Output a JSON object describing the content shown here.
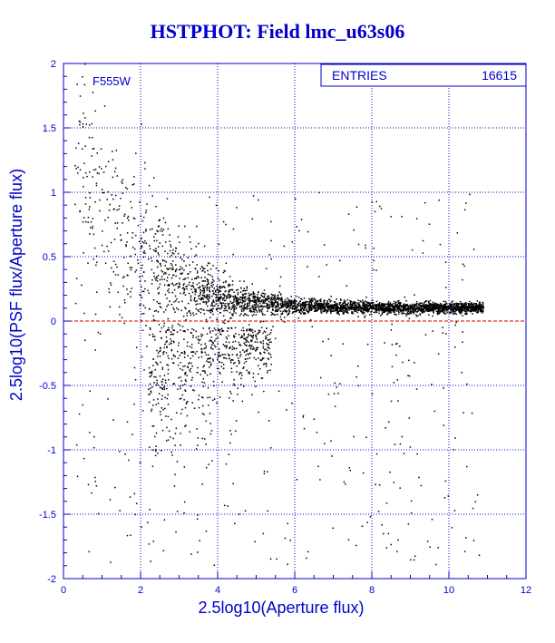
{
  "chart_data": {
    "type": "scatter",
    "title": "HSTPHOT: Field lmc_u63s06",
    "xlabel": "2.5log10(Aperture flux)",
    "ylabel": "2.5log10(PSF flux/Aperture flux)",
    "xlim": [
      0,
      12
    ],
    "ylim": [
      -2,
      2
    ],
    "xticks": [
      "0",
      "2",
      "4",
      "6",
      "8",
      "10",
      "12"
    ],
    "yticks": [
      "-2",
      "-1.5",
      "-1",
      "-0.5",
      "0",
      "0.5",
      "1",
      "1.5",
      "2"
    ],
    "grid": true,
    "filter_label": "F555W",
    "stats": {
      "label": "ENTRIES",
      "value": "16615"
    },
    "reference_line": {
      "y": 0,
      "color": "#cc0000",
      "style": "dashed"
    },
    "point_color": "#000000",
    "distribution": {
      "description_points": [
        {
          "x": 0.5,
          "y": 1.6
        },
        {
          "x": 1.5,
          "y": 0.9
        },
        {
          "x": 2.0,
          "y": 0.5
        },
        {
          "x": 3.0,
          "y": 0.25
        },
        {
          "x": 4.0,
          "y": 0.15
        },
        {
          "x": 6.0,
          "y": 0.1
        },
        {
          "x": 8.0,
          "y": 0.1
        },
        {
          "x": 10.0,
          "y": 0.12
        },
        {
          "x": 10.9,
          "y": 0.12
        }
      ]
    }
  }
}
